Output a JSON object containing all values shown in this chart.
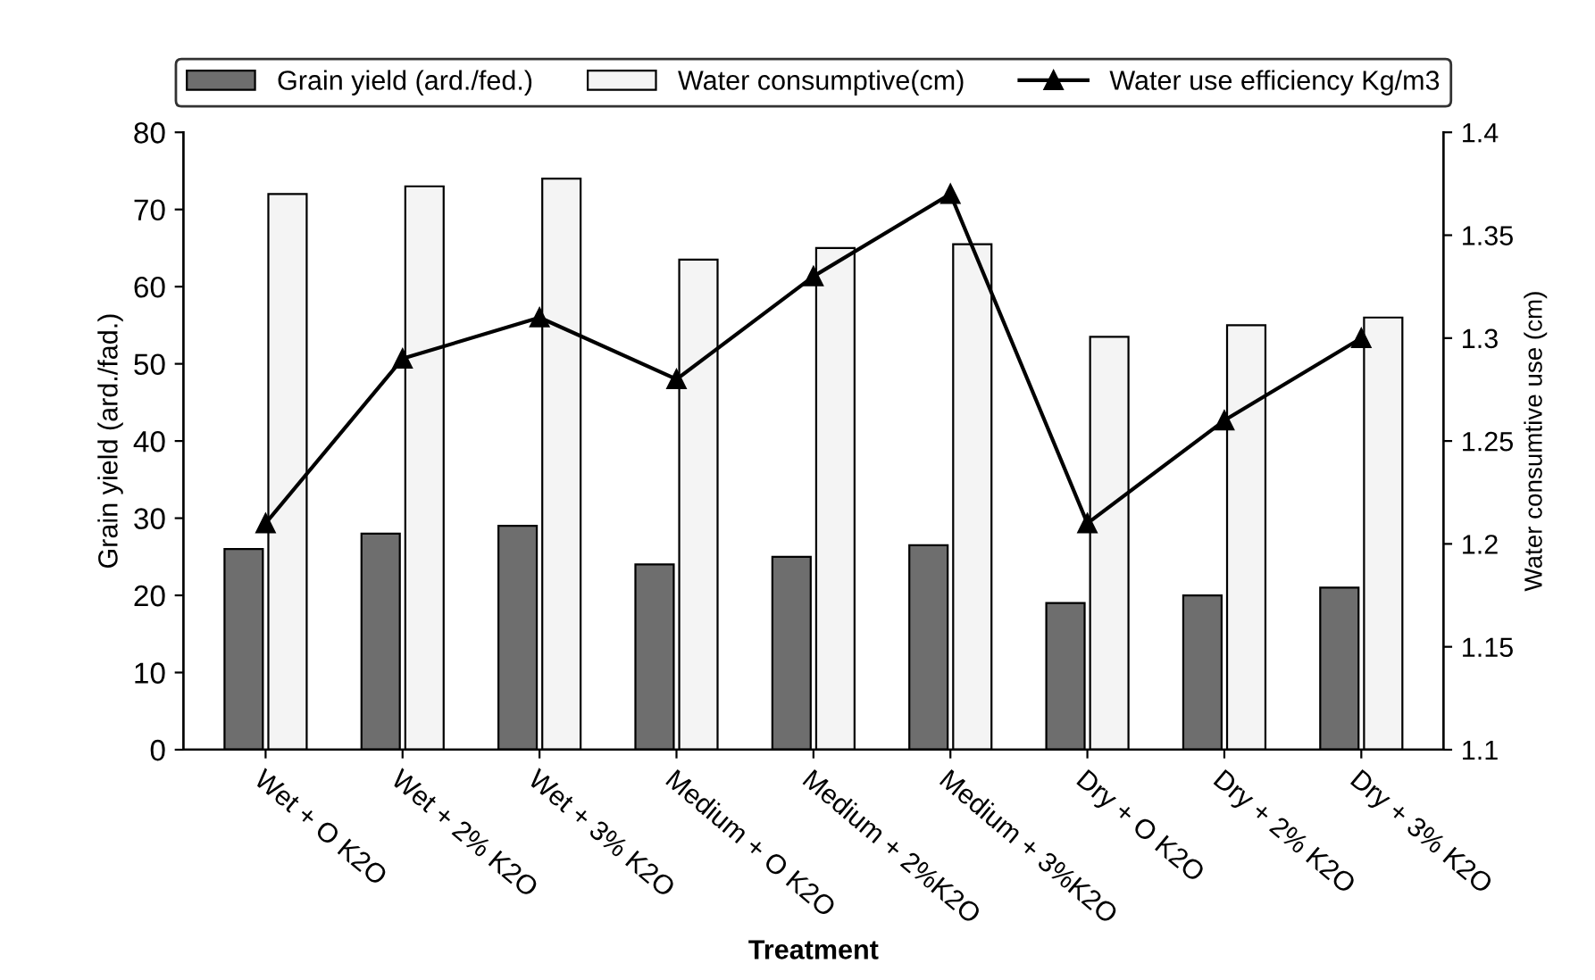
{
  "chart_data": {
    "type": "bar",
    "xlabel": "Treatment",
    "ylabel": "Grain yield (ard./fad.)",
    "y2label": "Water consumtive use (cm)",
    "categories": [
      "Wet + O K2O",
      "Wet + 2% K2O",
      "Wet + 3% K2O",
      "Medium + O K2O",
      "Medium + 2%K2O",
      "Medium + 3%K2O",
      "Dry + O K2O",
      "Dry + 2% K2O",
      "Dry + 3% K2O"
    ],
    "series": [
      {
        "name": "Grain yield (ard./fed.)",
        "color": "#6e6e6e",
        "values": [
          26,
          28,
          29,
          24,
          25,
          26.5,
          19,
          20,
          21
        ]
      },
      {
        "name": "Water consumptive(cm)",
        "color": "#f4f4f4",
        "values": [
          72,
          73,
          74,
          63.5,
          65,
          65.5,
          53.5,
          55,
          56
        ]
      },
      {
        "name": "Water use efficiency Kg/m3",
        "type": "line",
        "axis": "y2",
        "color": "#000000",
        "values": [
          1.21,
          1.29,
          1.31,
          1.28,
          1.33,
          1.37,
          1.21,
          1.26,
          1.3
        ]
      }
    ],
    "ylim": [
      0,
      80
    ],
    "yticks": [
      0,
      10,
      20,
      30,
      40,
      50,
      60,
      70,
      80
    ],
    "y2lim": [
      1.1,
      1.4
    ],
    "y2ticks": [
      1.1,
      1.15,
      1.2,
      1.25,
      1.3,
      1.35,
      1.4
    ],
    "legend": "top",
    "grid": false,
    "marker": "triangle",
    "line_style": "solid"
  }
}
